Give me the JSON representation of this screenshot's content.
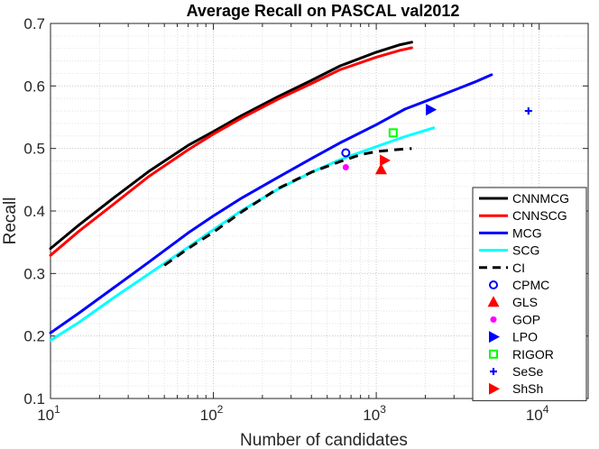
{
  "chart_data": {
    "type": "line",
    "title": "Average Recall on PASCAL val2012",
    "xlabel": "Number of candidates",
    "ylabel": "Recall",
    "xscale": "log",
    "xlim": [
      10,
      20000
    ],
    "ylim": [
      0.1,
      0.7
    ],
    "grid": true,
    "legend_position": "bottom-right",
    "x_ticks": [
      {
        "value": 10,
        "base": "10",
        "exp": "1"
      },
      {
        "value": 100,
        "base": "10",
        "exp": "2"
      },
      {
        "value": 1000,
        "base": "10",
        "exp": "3"
      },
      {
        "value": 10000,
        "base": "10",
        "exp": "4"
      }
    ],
    "y_ticks": [
      {
        "value": 0.1,
        "label": "0.1"
      },
      {
        "value": 0.2,
        "label": "0.2"
      },
      {
        "value": 0.3,
        "label": "0.3"
      },
      {
        "value": 0.4,
        "label": "0.4"
      },
      {
        "value": 0.5,
        "label": "0.5"
      },
      {
        "value": 0.6,
        "label": "0.6"
      },
      {
        "value": 0.7,
        "label": "0.7"
      }
    ],
    "series": [
      {
        "name": "CNNMCG",
        "color": "#000000",
        "dash": "solid",
        "x": [
          10,
          15,
          25,
          40,
          70,
          100,
          150,
          250,
          400,
          600,
          1000,
          1400,
          1650
        ],
        "y": [
          0.34,
          0.378,
          0.423,
          0.463,
          0.505,
          0.527,
          0.553,
          0.583,
          0.609,
          0.632,
          0.654,
          0.666,
          0.67
        ]
      },
      {
        "name": "CNNSCG",
        "color": "#ff0000",
        "dash": "solid",
        "x": [
          10,
          15,
          25,
          40,
          70,
          100,
          150,
          250,
          400,
          600,
          1000,
          1400,
          1650
        ],
        "y": [
          0.329,
          0.368,
          0.413,
          0.455,
          0.498,
          0.523,
          0.549,
          0.579,
          0.604,
          0.626,
          0.646,
          0.657,
          0.661
        ]
      },
      {
        "name": "MCG",
        "color": "#0000ff",
        "dash": "solid",
        "x": [
          10,
          15,
          25,
          40,
          70,
          100,
          150,
          250,
          400,
          600,
          1000,
          1500,
          2500,
          4000,
          5100
        ],
        "y": [
          0.205,
          0.237,
          0.279,
          0.318,
          0.365,
          0.392,
          0.421,
          0.454,
          0.484,
          0.509,
          0.538,
          0.563,
          0.585,
          0.606,
          0.618
        ]
      },
      {
        "name": "SCG",
        "color": "#00ffff",
        "dash": "solid",
        "x": [
          10,
          15,
          25,
          40,
          70,
          100,
          150,
          250,
          400,
          600,
          1000,
          1500,
          2250
        ],
        "y": [
          0.193,
          0.222,
          0.263,
          0.299,
          0.342,
          0.37,
          0.401,
          0.435,
          0.462,
          0.482,
          0.503,
          0.519,
          0.533
        ]
      },
      {
        "name": "CI",
        "color": "#000000",
        "dash": "dashed",
        "x": [
          50,
          70,
          100,
          150,
          250,
          400,
          600,
          800,
          1000,
          1300,
          1650
        ],
        "y": [
          0.313,
          0.34,
          0.366,
          0.399,
          0.436,
          0.462,
          0.479,
          0.49,
          0.495,
          0.498,
          0.5
        ]
      }
    ],
    "points": [
      {
        "name": "CPMC",
        "x": 650,
        "y": 0.493,
        "marker": "circle-open",
        "color": "#0000ff"
      },
      {
        "name": "GLS",
        "x": 1070,
        "y": 0.466,
        "marker": "triangle-up",
        "color": "#ff0000"
      },
      {
        "name": "GOP",
        "x": 650,
        "y": 0.47,
        "marker": "dot",
        "color": "#ff00ff"
      },
      {
        "name": "LPO",
        "x": 2150,
        "y": 0.562,
        "marker": "triangle-right",
        "color": "#0000ff"
      },
      {
        "name": "RIGOR",
        "x": 1270,
        "y": 0.525,
        "marker": "square-open",
        "color": "#00ff00"
      },
      {
        "name": "SeSe",
        "x": 8600,
        "y": 0.56,
        "marker": "plus",
        "color": "#0000ff"
      },
      {
        "name": "ShSh",
        "x": 1120,
        "y": 0.481,
        "marker": "triangle-right",
        "color": "#ff0000"
      }
    ]
  }
}
